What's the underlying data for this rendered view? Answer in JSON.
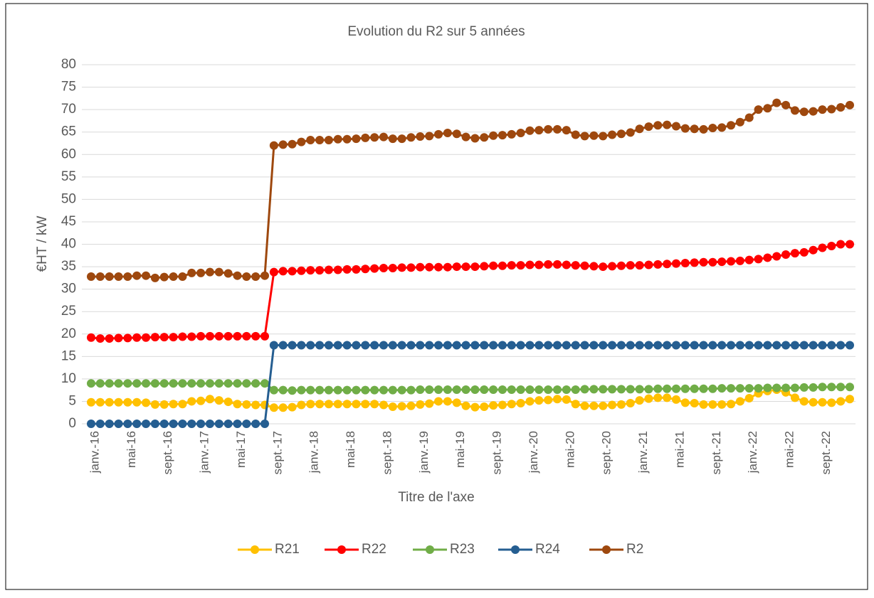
{
  "chart_data": {
    "type": "line",
    "title": "Evolution du R2 sur 5 années",
    "x_label": "Titre de l'axe",
    "y_label": "€HT / kW",
    "categories": [
      "janv.-16",
      null,
      null,
      null,
      "mai-16",
      null,
      null,
      null,
      "sept.-16",
      null,
      null,
      null,
      "janv.-17",
      null,
      null,
      null,
      "mai-17",
      null,
      null,
      null,
      "sept.-17",
      null,
      null,
      null,
      "janv.-18",
      null,
      null,
      null,
      "mai-18",
      null,
      null,
      null,
      "sept.-18",
      null,
      null,
      null,
      "janv.-19",
      null,
      null,
      null,
      "mai-19",
      null,
      null,
      null,
      "sept.-19",
      null,
      null,
      null,
      "janv.-20",
      null,
      null,
      null,
      "mai-20",
      null,
      null,
      null,
      "sept.-20",
      null,
      null,
      null,
      "janv.-21",
      null,
      null,
      null,
      "mai-21",
      null,
      null,
      null,
      "sept.-21",
      null,
      null,
      null,
      "janv.-22",
      null,
      null,
      null,
      "mai-22",
      null,
      null,
      null,
      "sept.-22",
      null,
      null,
      null
    ],
    "series": [
      {
        "name": "R21",
        "color": "#FFC000",
        "values": [
          4.8,
          4.8,
          4.8,
          4.8,
          4.8,
          4.8,
          4.7,
          4.3,
          4.3,
          4.4,
          4.4,
          5,
          5.1,
          5.5,
          5.2,
          4.9,
          4.4,
          4.3,
          4.2,
          4.2,
          3.6,
          3.6,
          3.7,
          4.2,
          4.4,
          4.4,
          4.4,
          4.4,
          4.4,
          4.4,
          4.4,
          4.4,
          4.2,
          3.8,
          3.9,
          4,
          4.3,
          4.5,
          5,
          5,
          4.7,
          4,
          3.7,
          3.8,
          4.1,
          4.2,
          4.4,
          4.6,
          5,
          5.2,
          5.3,
          5.5,
          5.4,
          4.4,
          4,
          4,
          4,
          4.2,
          4.3,
          4.6,
          5.2,
          5.6,
          5.8,
          5.8,
          5.4,
          4.7,
          4.6,
          4.3,
          4.3,
          4.3,
          4.4,
          5,
          5.7,
          6.8,
          7.3,
          7.6,
          7,
          5.8,
          5,
          4.8,
          4.8,
          4.7,
          5,
          5.5
        ]
      },
      {
        "name": "R22",
        "color": "#FF0000",
        "values": [
          19.2,
          19,
          19,
          19.1,
          19.1,
          19.2,
          19.2,
          19.3,
          19.3,
          19.3,
          19.4,
          19.4,
          19.5,
          19.5,
          19.5,
          19.5,
          19.5,
          19.5,
          19.5,
          19.5,
          33.8,
          34,
          34,
          34.1,
          34.2,
          34.2,
          34.3,
          34.3,
          34.4,
          34.4,
          34.5,
          34.6,
          34.7,
          34.7,
          34.8,
          34.8,
          34.9,
          34.9,
          34.9,
          34.9,
          35,
          35,
          35,
          35.1,
          35.2,
          35.2,
          35.3,
          35.3,
          35.4,
          35.4,
          35.5,
          35.5,
          35.4,
          35.3,
          35.2,
          35.1,
          35,
          35.1,
          35.2,
          35.3,
          35.3,
          35.4,
          35.5,
          35.6,
          35.7,
          35.8,
          35.9,
          36,
          36,
          36.1,
          36.2,
          36.3,
          36.5,
          36.7,
          37,
          37.3,
          37.7,
          38,
          38.2,
          38.7,
          39.2,
          39.6,
          40,
          40
        ]
      },
      {
        "name": "R23",
        "color": "#70AD47",
        "values": [
          9,
          9,
          9,
          9,
          9,
          9,
          9,
          9,
          9,
          9,
          9,
          9,
          9,
          9,
          9,
          9,
          9,
          9,
          9,
          9,
          7.5,
          7.5,
          7.4,
          7.5,
          7.5,
          7.5,
          7.5,
          7.5,
          7.5,
          7.5,
          7.5,
          7.5,
          7.5,
          7.5,
          7.5,
          7.5,
          7.6,
          7.6,
          7.6,
          7.6,
          7.6,
          7.6,
          7.6,
          7.6,
          7.6,
          7.6,
          7.6,
          7.6,
          7.6,
          7.6,
          7.6,
          7.6,
          7.6,
          7.6,
          7.7,
          7.7,
          7.7,
          7.7,
          7.7,
          7.7,
          7.7,
          7.7,
          7.8,
          7.8,
          7.8,
          7.8,
          7.8,
          7.8,
          7.8,
          7.9,
          7.9,
          7.9,
          7.9,
          7.9,
          8,
          8,
          8,
          8,
          8.1,
          8.1,
          8.2,
          8.2,
          8.2,
          8.2
        ]
      },
      {
        "name": "R24",
        "color": "#255E91",
        "values": [
          0,
          0,
          0,
          0,
          0,
          0,
          0,
          0,
          0,
          0,
          0,
          0,
          0,
          0,
          0,
          0,
          0,
          0,
          0,
          0,
          17.5,
          17.5,
          17.5,
          17.5,
          17.5,
          17.5,
          17.5,
          17.5,
          17.5,
          17.5,
          17.5,
          17.5,
          17.5,
          17.5,
          17.5,
          17.5,
          17.5,
          17.5,
          17.5,
          17.5,
          17.5,
          17.5,
          17.5,
          17.5,
          17.5,
          17.5,
          17.5,
          17.5,
          17.5,
          17.5,
          17.5,
          17.5,
          17.5,
          17.5,
          17.5,
          17.5,
          17.5,
          17.5,
          17.5,
          17.5,
          17.5,
          17.5,
          17.5,
          17.5,
          17.5,
          17.5,
          17.5,
          17.5,
          17.5,
          17.5,
          17.5,
          17.5,
          17.5,
          17.5,
          17.5,
          17.5,
          17.5,
          17.5,
          17.5,
          17.5,
          17.5,
          17.5,
          17.5,
          17.5
        ]
      },
      {
        "name": "R2",
        "color": "#9E480E",
        "values": [
          32.8,
          32.8,
          32.8,
          32.8,
          32.8,
          33,
          33,
          32.5,
          32.7,
          32.8,
          32.8,
          33.6,
          33.6,
          33.8,
          33.8,
          33.5,
          33,
          32.8,
          32.8,
          33,
          62,
          62.2,
          62.3,
          62.8,
          63.2,
          63.2,
          63.2,
          63.4,
          63.4,
          63.5,
          63.7,
          63.8,
          63.9,
          63.5,
          63.5,
          63.8,
          64,
          64.1,
          64.5,
          64.8,
          64.6,
          63.9,
          63.6,
          63.8,
          64.2,
          64.3,
          64.5,
          64.8,
          65.3,
          65.4,
          65.6,
          65.6,
          65.4,
          64.4,
          64.1,
          64.2,
          64.1,
          64.4,
          64.6,
          64.9,
          65.7,
          66.2,
          66.5,
          66.6,
          66.3,
          65.8,
          65.7,
          65.6,
          65.9,
          66,
          66.5,
          67.2,
          68.2,
          70,
          70.3,
          71.5,
          71,
          69.8,
          69.5,
          69.6,
          70,
          70.1,
          70.5,
          71
        ]
      }
    ],
    "ylim": [
      0,
      80
    ],
    "yticks": [
      0,
      5,
      10,
      15,
      20,
      25,
      30,
      35,
      40,
      45,
      50,
      55,
      60,
      65,
      70,
      75,
      80
    ],
    "grid": true,
    "legend": "bottom"
  }
}
